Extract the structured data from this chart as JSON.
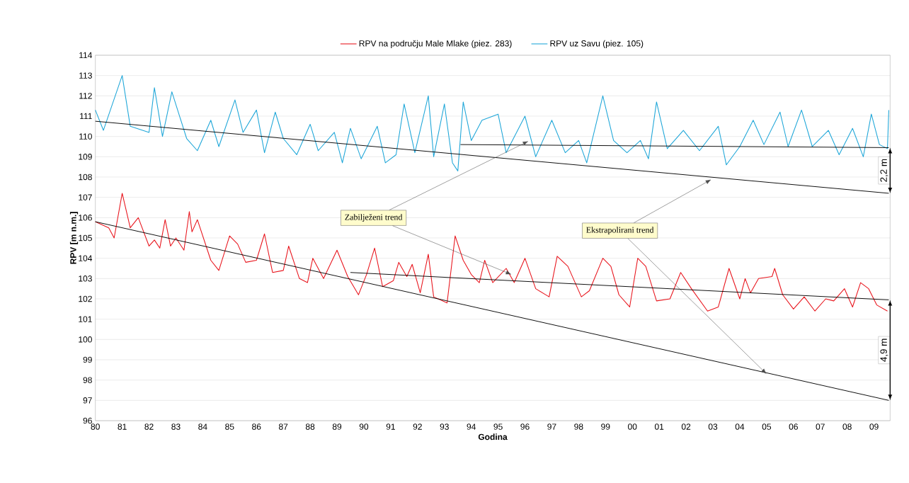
{
  "chart_data": {
    "type": "line",
    "xlabel": "Godina",
    "ylabel": "RPV [m n.m.]",
    "xlim": [
      1980,
      2009.6
    ],
    "ylim": [
      96,
      114
    ],
    "xticks": [
      {
        "value": 1980,
        "label": "80"
      },
      {
        "value": 1981,
        "label": "81"
      },
      {
        "value": 1982,
        "label": "82"
      },
      {
        "value": 1983,
        "label": "83"
      },
      {
        "value": 1984,
        "label": "84"
      },
      {
        "value": 1985,
        "label": "85"
      },
      {
        "value": 1986,
        "label": "86"
      },
      {
        "value": 1987,
        "label": "87"
      },
      {
        "value": 1988,
        "label": "88"
      },
      {
        "value": 1989,
        "label": "89"
      },
      {
        "value": 1990,
        "label": "90"
      },
      {
        "value": 1991,
        "label": "91"
      },
      {
        "value": 1992,
        "label": "92"
      },
      {
        "value": 1993,
        "label": "93"
      },
      {
        "value": 1994,
        "label": "94"
      },
      {
        "value": 1995,
        "label": "95"
      },
      {
        "value": 1996,
        "label": "96"
      },
      {
        "value": 1997,
        "label": "97"
      },
      {
        "value": 1998,
        "label": "98"
      },
      {
        "value": 1999,
        "label": "99"
      },
      {
        "value": 2000,
        "label": "00"
      },
      {
        "value": 2001,
        "label": "01"
      },
      {
        "value": 2002,
        "label": "02"
      },
      {
        "value": 2003,
        "label": "03"
      },
      {
        "value": 2004,
        "label": "04"
      },
      {
        "value": 2005,
        "label": "05"
      },
      {
        "value": 2006,
        "label": "06"
      },
      {
        "value": 2007,
        "label": "07"
      },
      {
        "value": 2008,
        "label": "08"
      },
      {
        "value": 2009,
        "label": "09"
      }
    ],
    "yticks": [
      96,
      97,
      98,
      99,
      100,
      101,
      102,
      103,
      104,
      105,
      106,
      107,
      108,
      109,
      110,
      111,
      112,
      113,
      114
    ],
    "grid": "y",
    "legend": "top",
    "line_style": "solid",
    "marker": "none",
    "series": [
      {
        "name": "RPV na području Male Mlake (piez. 283)",
        "color": "#e8141c",
        "x": [
          1980,
          1980.5,
          1980.7,
          1981,
          1981.3,
          1981.6,
          1982,
          1982.2,
          1982.4,
          1982.6,
          1982.8,
          1983,
          1983.3,
          1983.5,
          1983.6,
          1983.8,
          1984.3,
          1984.6,
          1985,
          1985.3,
          1985.6,
          1986,
          1986.3,
          1986.6,
          1987,
          1987.2,
          1987.6,
          1987.9,
          1988.1,
          1988.5,
          1989,
          1989.4,
          1989.8,
          1990.1,
          1990.4,
          1990.7,
          1991.1,
          1991.3,
          1991.6,
          1991.8,
          1992.1,
          1992.4,
          1992.6,
          1993.1,
          1993.4,
          1993.7,
          1994,
          1994.3,
          1994.5,
          1994.8,
          1995.3,
          1995.6,
          1996,
          1996.4,
          1996.9,
          1997.2,
          1997.6,
          1998.1,
          1998.4,
          1998.9,
          1999.2,
          1999.5,
          1999.9,
          2000.2,
          2000.5,
          2000.9,
          2001.4,
          2001.8,
          2002.2,
          2002.8,
          2003.2,
          2003.6,
          2004,
          2004.2,
          2004.4,
          2004.7,
          2005.2,
          2005.3,
          2005.6,
          2006,
          2006.4,
          2006.8,
          2007.2,
          2007.5,
          2007.9,
          2008.2,
          2008.5,
          2008.8,
          2009.1,
          2009.5
        ],
        "values": [
          105.8,
          105.5,
          105.0,
          107.2,
          105.5,
          106.0,
          104.6,
          104.9,
          104.5,
          105.9,
          104.6,
          105.0,
          104.4,
          106.3,
          105.3,
          105.9,
          103.9,
          103.4,
          105.1,
          104.7,
          103.8,
          103.9,
          105.2,
          103.3,
          103.4,
          104.6,
          103.0,
          102.8,
          104.0,
          103.0,
          104.4,
          103.1,
          102.2,
          103.2,
          104.5,
          102.6,
          102.9,
          103.8,
          103.1,
          103.7,
          102.3,
          104.2,
          102.1,
          101.8,
          105.1,
          103.9,
          103.2,
          102.8,
          103.9,
          102.8,
          103.5,
          102.8,
          104.0,
          102.5,
          102.1,
          104.1,
          103.6,
          102.1,
          102.4,
          104.0,
          103.6,
          102.2,
          101.6,
          104.0,
          103.6,
          101.9,
          102.0,
          103.3,
          102.5,
          101.4,
          101.6,
          103.5,
          102.0,
          103.0,
          102.3,
          103.0,
          103.1,
          103.5,
          102.2,
          101.5,
          102.1,
          101.4,
          102.0,
          101.9,
          102.5,
          101.6,
          102.8,
          102.5,
          101.7,
          101.4
        ]
      },
      {
        "name": "RPV uz Savu (piez. 105)",
        "color": "#1ea6d8",
        "x": [
          1980,
          1980.3,
          1981,
          1981.3,
          1982,
          1982.2,
          1982.5,
          1982.85,
          1983.4,
          1983.8,
          1984.3,
          1984.6,
          1985.2,
          1985.5,
          1986,
          1986.3,
          1986.7,
          1987,
          1987.5,
          1988,
          1988.3,
          1988.9,
          1989.2,
          1989.5,
          1989.9,
          1990.5,
          1990.8,
          1991.2,
          1991.5,
          1991.9,
          1992.4,
          1992.6,
          1993,
          1993.3,
          1993.5,
          1993.7,
          1994,
          1994.4,
          1995,
          1995.3,
          1996,
          1996.4,
          1997,
          1997.5,
          1998,
          1998.3,
          1998.9,
          1999.3,
          1999.8,
          2000.3,
          2000.6,
          2000.9,
          2001.3,
          2001.9,
          2002.5,
          2003.2,
          2003.5,
          2004,
          2004.5,
          2004.9,
          2005.5,
          2005.8,
          2006.3,
          2006.7,
          2007.3,
          2007.7,
          2008.2,
          2008.6,
          2008.9,
          2009.2,
          2009.5,
          2009.55
        ],
        "values": [
          111.3,
          110.3,
          113.0,
          110.5,
          110.2,
          112.4,
          110.0,
          112.2,
          109.9,
          109.3,
          110.8,
          109.5,
          111.8,
          110.2,
          111.3,
          109.2,
          111.2,
          109.9,
          109.1,
          110.6,
          109.3,
          110.2,
          108.7,
          110.4,
          108.9,
          110.5,
          108.7,
          109.1,
          111.6,
          109.2,
          112.0,
          109.0,
          111.6,
          108.7,
          108.3,
          111.7,
          109.8,
          110.8,
          111.1,
          109.2,
          111.0,
          109.0,
          110.8,
          109.2,
          109.8,
          108.7,
          112.0,
          109.8,
          109.2,
          109.8,
          108.9,
          111.7,
          109.4,
          110.3,
          109.3,
          110.5,
          108.6,
          109.5,
          110.8,
          109.6,
          111.2,
          109.5,
          111.3,
          109.5,
          110.3,
          109.1,
          110.4,
          109.0,
          111.1,
          109.6,
          109.4,
          111.3
        ]
      },
      {
        "color": "#000000",
        "x": [
          1980,
          2009.55
        ],
        "values": [
          105.8,
          97.0
        ]
      },
      {
        "color": "#000000",
        "x": [
          1989.5,
          2009.55
        ],
        "values": [
          103.3,
          101.95
        ]
      },
      {
        "color": "#000000",
        "x": [
          1980,
          2009.55
        ],
        "values": [
          110.75,
          107.2
        ]
      },
      {
        "color": "#000000",
        "x": [
          1993.6,
          2009.55
        ],
        "values": [
          109.6,
          109.45
        ]
      }
    ],
    "annotations": [
      {
        "text": "Zabilježeni trend",
        "x": 1995.5,
        "y": 103.2
      },
      {
        "text": "Ekstrapolirani trend",
        "x": 2005,
        "y": 98.3
      },
      "2,2 m",
      "4,9 m"
    ]
  }
}
